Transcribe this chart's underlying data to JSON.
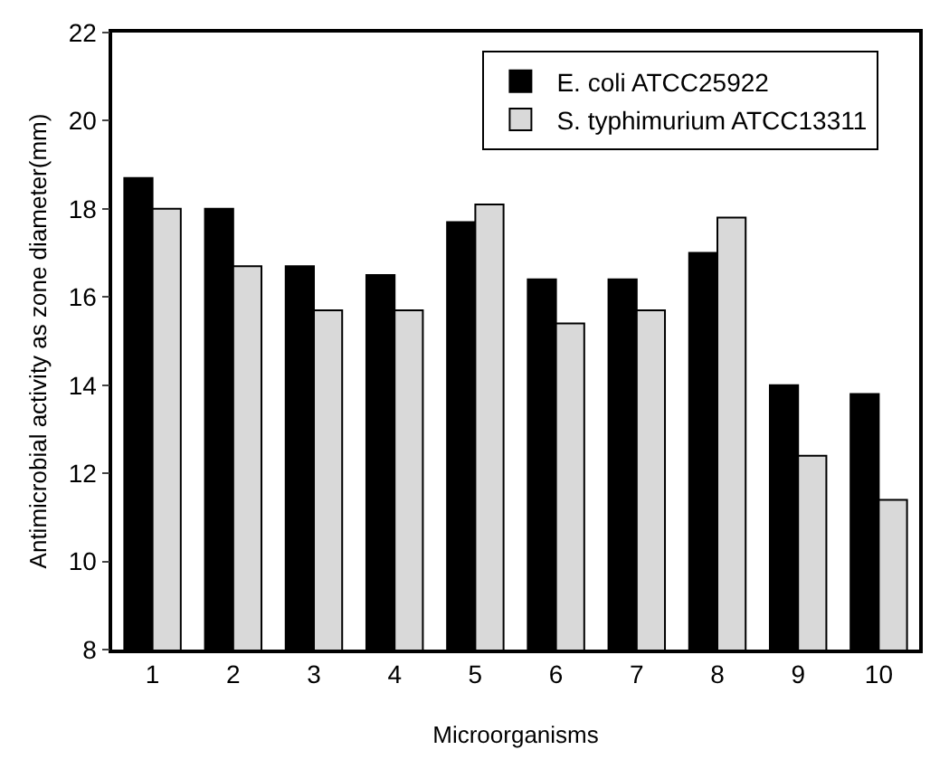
{
  "chart_data": {
    "type": "bar",
    "xlabel": "Microorganisms",
    "ylabel": "Antimicrobial activity as zone diameter(mm)",
    "categories": [
      "1",
      "2",
      "3",
      "4",
      "5",
      "6",
      "7",
      "8",
      "9",
      "10"
    ],
    "series": [
      {
        "name": "E. coli ATCC25922",
        "color": "#000000",
        "values": [
          18.7,
          18.0,
          16.7,
          16.5,
          17.7,
          16.4,
          16.4,
          17.0,
          14.0,
          13.8
        ]
      },
      {
        "name": "S. typhimurium ATCC13311",
        "color": "#d9d9d9",
        "values": [
          18.0,
          16.7,
          15.7,
          15.7,
          18.1,
          15.4,
          15.7,
          17.8,
          12.4,
          11.4
        ]
      }
    ],
    "ylim": [
      8,
      22
    ],
    "yticks": [
      8,
      10,
      12,
      14,
      16,
      18,
      20,
      22
    ],
    "grid": false,
    "legend": "top right"
  }
}
